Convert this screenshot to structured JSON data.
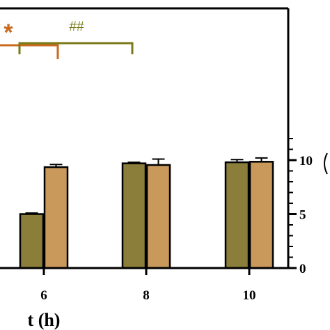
{
  "chart_data": {
    "type": "bar",
    "xlabel": "t (h)",
    "categories": [
      "6",
      "8",
      "10"
    ],
    "series": [
      {
        "values": [
          5.0,
          9.7,
          9.8
        ],
        "errors": [
          0.1,
          0.1,
          0.25
        ],
        "color": "#8a7e3a"
      },
      {
        "values": [
          9.35,
          9.55,
          9.85
        ],
        "errors": [
          0.25,
          0.55,
          0.35
        ],
        "color": "#c9995c"
      }
    ],
    "right_axis": {
      "ylim": [
        0,
        12
      ],
      "ticks": [
        "0",
        "5",
        "10"
      ]
    },
    "annotations": [
      {
        "text": "*",
        "color": "#c8691e"
      },
      {
        "text": "##",
        "color": "#7a7a18"
      }
    ]
  }
}
